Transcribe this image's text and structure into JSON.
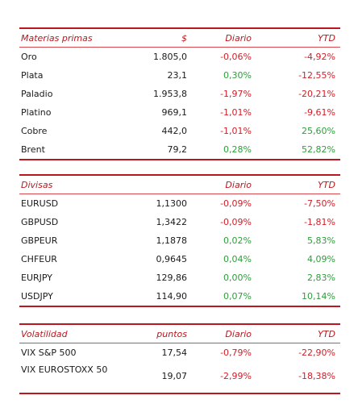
{
  "colors": {
    "accent": "#b8181e",
    "negative": "#d0202a",
    "positive": "#2e9e3b"
  },
  "sections": [
    {
      "id": "materias",
      "header": {
        "name": "Materias primas",
        "value": "$",
        "daily": "Diario",
        "ytd": "YTD"
      },
      "rows": [
        {
          "name": "Oro",
          "value": "1.805,0",
          "daily": "-0,06%",
          "ytd": "-4,92%"
        },
        {
          "name": "Plata",
          "value": "23,1",
          "daily": "0,30%",
          "ytd": "-12,55%"
        },
        {
          "name": "Paladio",
          "value": "1.953,8",
          "daily": "-1,97%",
          "ytd": "-20,21%"
        },
        {
          "name": "Platino",
          "value": "969,1",
          "daily": "-1,01%",
          "ytd": "-9,61%"
        },
        {
          "name": "Cobre",
          "value": "442,0",
          "daily": "-1,01%",
          "ytd": "25,60%"
        },
        {
          "name": "Brent",
          "value": "79,2",
          "daily": "0,28%",
          "ytd": "52,82%"
        }
      ]
    },
    {
      "id": "divisas",
      "header": {
        "name": "Divisas",
        "value": "",
        "daily": "Diario",
        "ytd": "YTD"
      },
      "rows": [
        {
          "name": "EURUSD",
          "value": "1,1300",
          "daily": "-0,09%",
          "ytd": "-7,50%"
        },
        {
          "name": "GBPUSD",
          "value": "1,3422",
          "daily": "-0,09%",
          "ytd": "-1,81%"
        },
        {
          "name": "GBPEUR",
          "value": "1,1878",
          "daily": "0,02%",
          "ytd": "5,83%"
        },
        {
          "name": "CHFEUR",
          "value": "0,9645",
          "daily": "0,04%",
          "ytd": "4,09%"
        },
        {
          "name": "EURJPY",
          "value": "129,86",
          "daily": "0,00%",
          "ytd": "2,83%"
        },
        {
          "name": "USDJPY",
          "value": "114,90",
          "daily": "0,07%",
          "ytd": "10,14%"
        }
      ]
    },
    {
      "id": "volatilidad",
      "header": {
        "name": "Volatilidad",
        "value": "puntos",
        "daily": "Diario",
        "ytd": "YTD"
      },
      "rows": [
        {
          "name": "VIX S&P 500",
          "value": "17,54",
          "daily": "-0,79%",
          "ytd": "-22,90%"
        },
        {
          "name": "VIX EUROSTOXX 50",
          "value": "19,07",
          "daily": "-2,99%",
          "ytd": "-18,38%"
        }
      ]
    }
  ]
}
